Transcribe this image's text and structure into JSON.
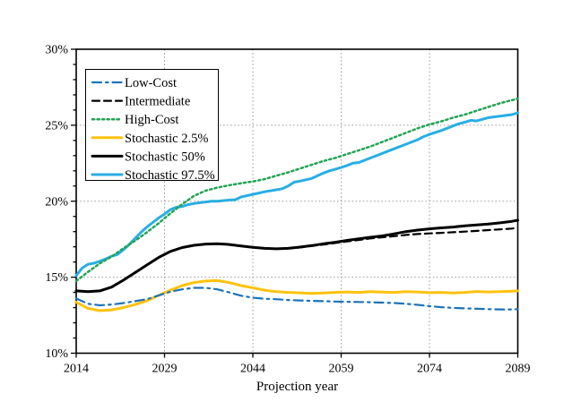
{
  "figure": {
    "background": "#ffffff"
  },
  "chart_data": {
    "type": "line",
    "title": "",
    "xlabel": "Projection year",
    "ylabel": "",
    "xlim": [
      2014,
      2089
    ],
    "ylim": [
      10,
      30
    ],
    "x_ticks": [
      2014,
      2029,
      2044,
      2059,
      2074,
      2089
    ],
    "x_tick_labels": [
      "2014",
      "2029",
      "2044",
      "2059",
      "2074",
      "2089"
    ],
    "y_ticks": [
      10,
      15,
      20,
      25,
      30
    ],
    "y_tick_labels": [
      "10%",
      "15%",
      "20%",
      "25%",
      "30%"
    ],
    "y_minor_tick_step": 1,
    "grid_x": [
      2029,
      2044,
      2059,
      2074
    ],
    "grid_y": [
      15,
      20,
      25
    ],
    "grid_color": "#999999",
    "axis_color": "#000000",
    "legend_position": "upper-left",
    "series": [
      {
        "name": "Low-Cost",
        "style": "dashdot",
        "color": "#1D73B8",
        "x": [
          2014,
          2016,
          2018,
          2020,
          2022,
          2024,
          2026,
          2028,
          2030,
          2032,
          2034,
          2036,
          2038,
          2040,
          2042,
          2044,
          2046,
          2048,
          2050,
          2052,
          2054,
          2056,
          2058,
          2060,
          2062,
          2064,
          2066,
          2068,
          2070,
          2072,
          2074,
          2076,
          2078,
          2080,
          2082,
          2084,
          2086,
          2088,
          2089
        ],
        "y": [
          13.6,
          13.25,
          13.15,
          13.2,
          13.3,
          13.42,
          13.55,
          13.8,
          14.05,
          14.2,
          14.3,
          14.3,
          14.2,
          14.0,
          13.78,
          13.65,
          13.58,
          13.55,
          13.5,
          13.47,
          13.44,
          13.42,
          13.4,
          13.38,
          13.37,
          13.35,
          13.33,
          13.3,
          13.25,
          13.18,
          13.1,
          13.03,
          12.98,
          12.95,
          12.92,
          12.9,
          12.88,
          12.88,
          12.9
        ]
      },
      {
        "name": "Intermediate",
        "style": "dashed",
        "color": "#000000",
        "x": [
          2014,
          2016,
          2018,
          2020,
          2022,
          2024,
          2026,
          2028,
          2030,
          2032,
          2034,
          2036,
          2038,
          2040,
          2042,
          2044,
          2046,
          2048,
          2050,
          2052,
          2054,
          2056,
          2058,
          2060,
          2062,
          2064,
          2066,
          2068,
          2070,
          2072,
          2074,
          2076,
          2078,
          2080,
          2082,
          2084,
          2086,
          2088,
          2089
        ],
        "y": [
          14.1,
          14.05,
          14.1,
          14.35,
          14.8,
          15.32,
          15.82,
          16.3,
          16.7,
          16.95,
          17.1,
          17.18,
          17.2,
          17.15,
          17.05,
          16.97,
          16.9,
          16.87,
          16.89,
          16.96,
          17.05,
          17.15,
          17.25,
          17.35,
          17.45,
          17.55,
          17.63,
          17.7,
          17.78,
          17.84,
          17.88,
          17.92,
          17.96,
          18.0,
          18.05,
          18.1,
          18.15,
          18.2,
          18.25
        ]
      },
      {
        "name": "High-Cost",
        "style": "dotted",
        "color": "#23A455",
        "x": [
          2014,
          2016,
          2018,
          2020,
          2022,
          2024,
          2026,
          2028,
          2030,
          2032,
          2034,
          2036,
          2038,
          2040,
          2042,
          2044,
          2046,
          2048,
          2050,
          2052,
          2054,
          2056,
          2058,
          2060,
          2062,
          2064,
          2066,
          2068,
          2070,
          2072,
          2074,
          2076,
          2078,
          2080,
          2082,
          2084,
          2086,
          2088,
          2089
        ],
        "y": [
          14.75,
          15.35,
          15.9,
          16.35,
          16.9,
          17.4,
          17.95,
          18.55,
          19.2,
          19.8,
          20.35,
          20.7,
          20.9,
          21.05,
          21.18,
          21.3,
          21.45,
          21.68,
          21.9,
          22.15,
          22.4,
          22.65,
          22.85,
          23.1,
          23.35,
          23.6,
          23.9,
          24.2,
          24.5,
          24.8,
          25.05,
          25.25,
          25.5,
          25.7,
          25.95,
          26.2,
          26.45,
          26.65,
          26.75
        ]
      },
      {
        "name": "Stochastic 2.5%",
        "style": "solid",
        "color": "#FFC20E",
        "x": [
          2014,
          2016,
          2018,
          2020,
          2022,
          2024,
          2026,
          2028,
          2030,
          2032,
          2034,
          2036,
          2038,
          2040,
          2042,
          2044,
          2046,
          2048,
          2050,
          2052,
          2054,
          2056,
          2058,
          2060,
          2062,
          2064,
          2066,
          2068,
          2070,
          2072,
          2074,
          2076,
          2078,
          2080,
          2082,
          2084,
          2086,
          2088,
          2089
        ],
        "y": [
          13.35,
          12.95,
          12.8,
          12.85,
          13.0,
          13.2,
          13.45,
          13.8,
          14.15,
          14.45,
          14.65,
          14.75,
          14.78,
          14.65,
          14.45,
          14.3,
          14.15,
          14.05,
          14.0,
          13.97,
          13.93,
          13.96,
          14.0,
          14.03,
          14.0,
          14.05,
          14.02,
          14.0,
          14.05,
          14.03,
          13.98,
          14.0,
          13.96,
          14.0,
          14.06,
          14.03,
          14.05,
          14.08,
          14.1
        ]
      },
      {
        "name": "Stochastic 50%",
        "style": "solid",
        "color": "#000000",
        "x": [
          2014,
          2016,
          2018,
          2020,
          2022,
          2024,
          2026,
          2028,
          2030,
          2032,
          2034,
          2036,
          2038,
          2040,
          2042,
          2044,
          2046,
          2048,
          2050,
          2052,
          2054,
          2056,
          2058,
          2060,
          2062,
          2064,
          2066,
          2068,
          2070,
          2072,
          2074,
          2076,
          2078,
          2080,
          2082,
          2084,
          2086,
          2088,
          2089
        ],
        "y": [
          14.1,
          14.05,
          14.1,
          14.35,
          14.8,
          15.3,
          15.8,
          16.3,
          16.7,
          16.95,
          17.1,
          17.18,
          17.2,
          17.15,
          17.05,
          16.97,
          16.9,
          16.87,
          16.9,
          16.98,
          17.08,
          17.2,
          17.3,
          17.42,
          17.52,
          17.63,
          17.72,
          17.85,
          18.0,
          18.1,
          18.18,
          18.25,
          18.3,
          18.38,
          18.44,
          18.5,
          18.58,
          18.68,
          18.75
        ]
      },
      {
        "name": "Stochastic 97.5%",
        "style": "solid",
        "color": "#29AEE3",
        "x": [
          2014,
          2015,
          2016,
          2017,
          2018,
          2019,
          2020,
          2021,
          2022,
          2023,
          2024,
          2025,
          2026,
          2027,
          2028,
          2029,
          2030,
          2031,
          2032,
          2033,
          2034,
          2035,
          2036,
          2037,
          2038,
          2040,
          2041,
          2042,
          2044,
          2046,
          2048,
          2049,
          2050,
          2051,
          2052,
          2054,
          2056,
          2057,
          2058,
          2060,
          2061,
          2062,
          2064,
          2066,
          2067,
          2068,
          2070,
          2072,
          2073,
          2074,
          2076,
          2078,
          2079,
          2080,
          2081,
          2082,
          2084,
          2085,
          2086,
          2088,
          2089
        ],
        "y": [
          15.1,
          15.6,
          15.85,
          15.92,
          16.05,
          16.2,
          16.38,
          16.5,
          16.8,
          17.15,
          17.55,
          17.95,
          18.3,
          18.6,
          18.9,
          19.15,
          19.45,
          19.6,
          19.65,
          19.78,
          19.85,
          19.9,
          19.95,
          20.0,
          20.0,
          20.08,
          20.1,
          20.28,
          20.45,
          20.62,
          20.75,
          20.82,
          21.0,
          21.25,
          21.32,
          21.5,
          21.85,
          22.0,
          22.1,
          22.35,
          22.5,
          22.55,
          22.85,
          23.15,
          23.3,
          23.45,
          23.75,
          24.05,
          24.25,
          24.4,
          24.65,
          24.95,
          25.1,
          25.2,
          25.32,
          25.28,
          25.5,
          25.55,
          25.6,
          25.7,
          25.82
        ]
      }
    ]
  }
}
